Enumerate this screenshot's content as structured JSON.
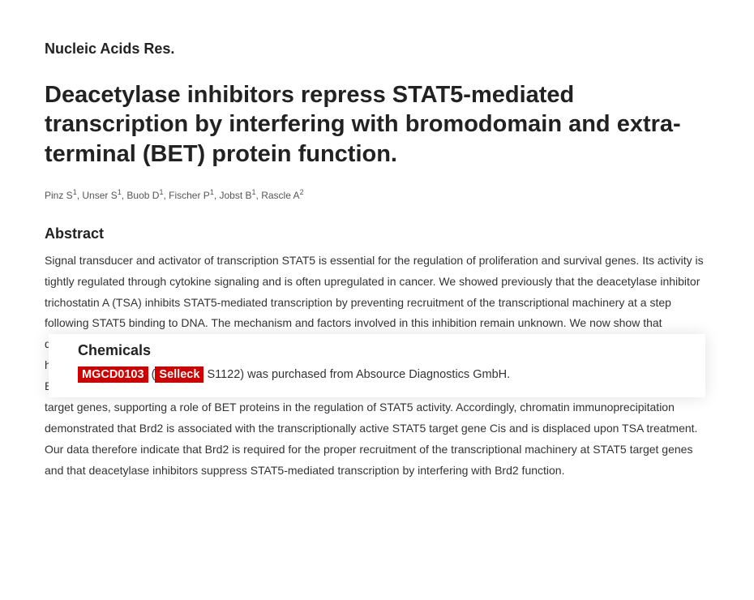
{
  "journal": "Nucleic Acids Res.",
  "title": "Deacetylase inhibitors repress STAT5-mediated transcription by interfering with bromodomain and extra-terminal (BET) protein function.",
  "authors_html": "Pinz S<sup>1</sup>, Unser S<sup>1</sup>, Buob D<sup>1</sup>, Fischer P<sup>1</sup>, Jobst B<sup>1</sup>, Rascle A<sup>2</sup>",
  "abstract_heading": "Abstract",
  "abstract_body": "Signal transducer and activator of transcription STAT5 is essential for the regulation of proliferation and survival genes. Its activity is tightly regulated through cytokine signaling and is often upregulated in cancer. We showed previously that the deacetylase inhibitor trichostatin A (TSA) inhibits STAT5-mediated transcription by preventing recruitment of the transcriptional machinery at a step following STAT5 binding to DNA. The mechanism and factors involved in this inhibition remain unknown. We now show that deacetylase inhibitors do not target STAT5 acetylation, as we initially hypothesized. Instead, they induce a rapid increase in global histone acetylation apparently resulting in the delocalization of the bromodomain and extra-terminal (BET) protein Brd2 and of the Brd2-associated factor TBP to hyperacetylated chromatin. Treatment with the BET inhibitor (+)-JQ1 inhibited expression of STAT5 target genes, supporting a role of BET proteins in the regulation of STAT5 activity. Accordingly, chromatin immunoprecipitation demonstrated that Brd2 is associated with the transcriptionally active STAT5 target gene Cis and is displaced upon TSA treatment. Our data therefore indicate that Brd2 is required for the proper recruitment of the transcriptional machinery at STAT5 target genes and that deacetylase inhibitors suppress STAT5-mediated transcription by interfering with Brd2 function.",
  "overlay": {
    "heading": "Chemicals",
    "chem_name": "MGCD0103",
    "paren_open": " (",
    "brand": "Selleck",
    "rest": " S1122) was purchased from Absource Diagnostics GmbH."
  },
  "colors": {
    "highlight_bg": "#d00000",
    "highlight_fg": "#ffffff",
    "text": "#333333",
    "heading": "#222222",
    "background": "#ffffff"
  },
  "typography": {
    "journal_fontsize": 18,
    "title_fontsize": 29,
    "authors_fontsize": 12,
    "abstract_heading_fontsize": 18,
    "abstract_body_fontsize": 14,
    "overlay_heading_fontsize": 18,
    "overlay_line_fontsize": 14.5
  }
}
